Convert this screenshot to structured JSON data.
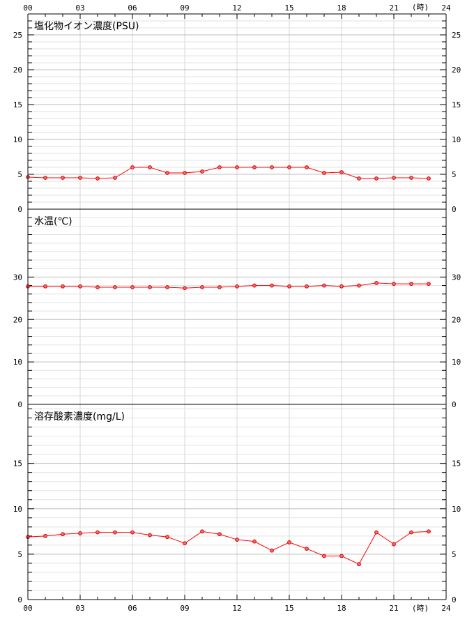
{
  "time_axis": {
    "labels": [
      "00",
      "03",
      "06",
      "09",
      "12",
      "15",
      "18",
      "21",
      "24"
    ],
    "unit": "(時)"
  },
  "chart_data": [
    {
      "type": "line",
      "title": "塩化物イオン濃度(PSU)",
      "ylim": [
        0,
        28
      ],
      "yticks": [
        0,
        5,
        10,
        15,
        20,
        25
      ],
      "minor_step": 1,
      "series_color": "#ff0000",
      "x": [
        0,
        1,
        2,
        3,
        4,
        5,
        6,
        7,
        8,
        9,
        10,
        11,
        12,
        13,
        14,
        15,
        16,
        17,
        18,
        19,
        20,
        21,
        22,
        23
      ],
      "values": [
        4.6,
        4.5,
        4.5,
        4.5,
        4.4,
        4.5,
        6.0,
        6.0,
        5.2,
        5.2,
        5.4,
        6.0,
        6.0,
        6.0,
        6.0,
        6.0,
        6.0,
        5.2,
        5.3,
        4.4,
        4.4,
        4.5,
        4.5,
        4.4
      ]
    },
    {
      "type": "line",
      "title": "水温(℃)",
      "ylim": [
        0,
        46
      ],
      "yticks": [
        0,
        10,
        20,
        30
      ],
      "minor_step": 2,
      "series_color": "#ff0000",
      "x": [
        0,
        1,
        2,
        3,
        4,
        5,
        6,
        7,
        8,
        9,
        10,
        11,
        12,
        13,
        14,
        15,
        16,
        17,
        18,
        19,
        20,
        21,
        22,
        23
      ],
      "values": [
        27.8,
        27.8,
        27.8,
        27.8,
        27.6,
        27.6,
        27.6,
        27.6,
        27.6,
        27.4,
        27.6,
        27.6,
        27.8,
        28.0,
        28.0,
        27.8,
        27.8,
        28.0,
        27.8,
        28.0,
        28.6,
        28.4,
        28.4,
        28.4
      ]
    },
    {
      "type": "line",
      "title": "溶存酸素濃度(mg/L)",
      "ylim": [
        0,
        21.5
      ],
      "yticks": [
        0,
        5,
        10,
        15
      ],
      "minor_step": 1,
      "series_color": "#ff0000",
      "x": [
        0,
        1,
        2,
        3,
        4,
        5,
        6,
        7,
        8,
        9,
        10,
        11,
        12,
        13,
        14,
        15,
        16,
        17,
        18,
        19,
        20,
        21,
        22,
        23
      ],
      "values": [
        6.9,
        7.0,
        7.2,
        7.3,
        7.4,
        7.4,
        7.4,
        7.1,
        6.9,
        6.2,
        7.5,
        7.2,
        6.6,
        6.4,
        5.4,
        6.3,
        5.6,
        4.8,
        4.8,
        3.9,
        7.4,
        6.1,
        7.4,
        7.5
      ]
    }
  ]
}
